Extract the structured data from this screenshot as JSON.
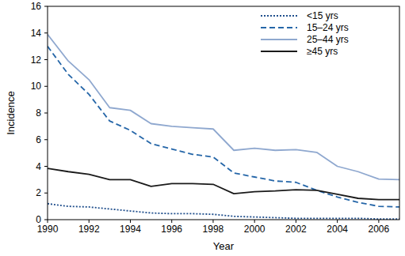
{
  "chart_data": {
    "type": "line",
    "x_label": "Year",
    "y_label": "Incidence",
    "x": [
      1990,
      1991,
      1992,
      1993,
      1994,
      1995,
      1996,
      1997,
      1998,
      1999,
      2000,
      2001,
      2002,
      2003,
      2004,
      2005,
      2006,
      2007
    ],
    "series": [
      {
        "name": "<15 yrs",
        "color": "#1f4e8c",
        "line_style": "dotted",
        "values": [
          1.2,
          1.0,
          0.95,
          0.8,
          0.65,
          0.5,
          0.45,
          0.45,
          0.4,
          0.25,
          0.2,
          0.15,
          0.1,
          0.1,
          0.1,
          0.1,
          0.05,
          0.05
        ]
      },
      {
        "name": "15–24 yrs",
        "color": "#2566a8",
        "line_style": "dashed",
        "values": [
          13.0,
          10.9,
          9.4,
          7.4,
          6.7,
          5.7,
          5.3,
          4.9,
          4.7,
          3.5,
          3.2,
          2.9,
          2.8,
          2.2,
          1.7,
          1.3,
          1.0,
          0.95
        ]
      },
      {
        "name": "25–44 yrs",
        "color": "#8fa8cf",
        "line_style": "solid",
        "values": [
          13.9,
          11.9,
          10.5,
          8.4,
          8.2,
          7.2,
          7.0,
          6.9,
          6.8,
          5.2,
          5.35,
          5.2,
          5.25,
          5.05,
          4.0,
          3.6,
          3.05,
          3.0
        ]
      },
      {
        "name": "≥45 yrs",
        "color": "#1a1a1a",
        "line_style": "solid",
        "values": [
          3.85,
          3.6,
          3.4,
          3.0,
          3.0,
          2.5,
          2.7,
          2.7,
          2.65,
          1.95,
          2.1,
          2.15,
          2.25,
          2.2,
          1.9,
          1.6,
          1.5,
          1.5
        ]
      }
    ],
    "xlim": [
      1990,
      2007
    ],
    "xticks": [
      1990,
      1992,
      1994,
      1996,
      1998,
      2000,
      2002,
      2004,
      2006
    ],
    "ylim": [
      0,
      16
    ],
    "yticks": [
      0,
      2,
      4,
      6,
      8,
      10,
      12,
      14,
      16
    ],
    "grid": false,
    "legend": "upper right"
  }
}
